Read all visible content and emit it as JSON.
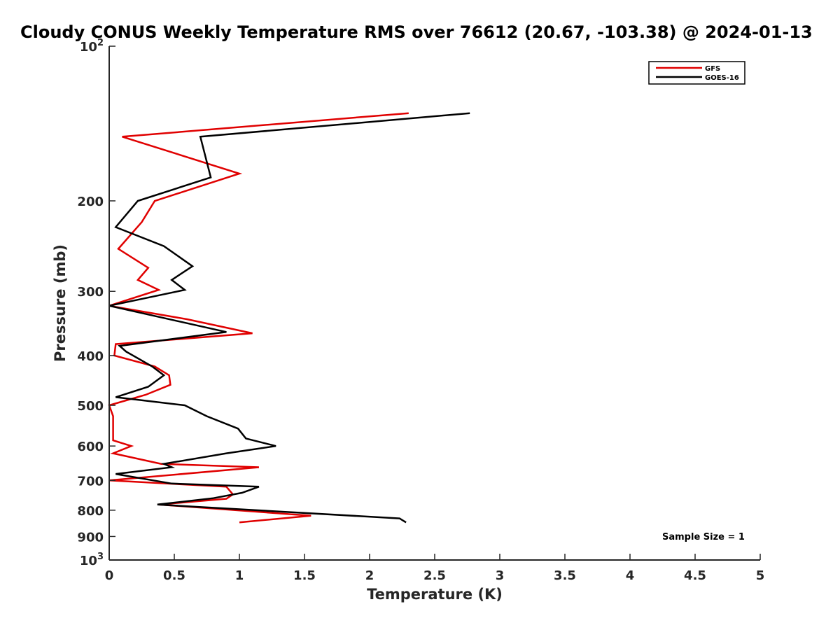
{
  "chart_data": {
    "type": "line",
    "title": "Cloudy CONUS Weekly Temperature RMS over 76612 (20.67, -103.38) @ 2024-01-13",
    "xlabel": "Temperature (K)",
    "ylabel": "Pressure (mb)",
    "xlim": [
      0,
      5
    ],
    "ylim": [
      100,
      1000
    ],
    "y_scale": "log",
    "y_reversed": true,
    "grid": false,
    "legend_position": "top-right",
    "x_ticks": [
      0,
      0.5,
      1,
      1.5,
      2,
      2.5,
      3,
      3.5,
      4,
      4.5,
      5
    ],
    "x_tick_labels": [
      "0",
      "0.5",
      "1",
      "1.5",
      "2",
      "2.5",
      "3",
      "3.5",
      "4",
      "4.5",
      "5"
    ],
    "y_ticks": [
      100,
      200,
      300,
      400,
      500,
      600,
      700,
      800,
      900,
      1000
    ],
    "y_tick_labels": [
      {
        "base": "10",
        "exp": "2"
      },
      {
        "base": "200",
        "exp": ""
      },
      {
        "base": "300",
        "exp": ""
      },
      {
        "base": "400",
        "exp": ""
      },
      {
        "base": "500",
        "exp": ""
      },
      {
        "base": "600",
        "exp": ""
      },
      {
        "base": "700",
        "exp": ""
      },
      {
        "base": "800",
        "exp": ""
      },
      {
        "base": "900",
        "exp": ""
      },
      {
        "base": "10",
        "exp": "3"
      }
    ],
    "series": [
      {
        "name": "GFS",
        "color": "#e00000",
        "points": [
          {
            "x": 2.3,
            "p": 135
          },
          {
            "x": 0.1,
            "p": 150
          },
          {
            "x": 1.0,
            "p": 177
          },
          {
            "x": 0.35,
            "p": 200
          },
          {
            "x": 0.25,
            "p": 220
          },
          {
            "x": 0.07,
            "p": 248
          },
          {
            "x": 0.3,
            "p": 270
          },
          {
            "x": 0.22,
            "p": 285
          },
          {
            "x": 0.38,
            "p": 298
          },
          {
            "x": 0.0,
            "p": 320
          },
          {
            "x": 0.6,
            "p": 340
          },
          {
            "x": 1.1,
            "p": 362
          },
          {
            "x": 0.05,
            "p": 380
          },
          {
            "x": 0.04,
            "p": 400
          },
          {
            "x": 0.35,
            "p": 420
          },
          {
            "x": 0.46,
            "p": 437
          },
          {
            "x": 0.47,
            "p": 456
          },
          {
            "x": 0.28,
            "p": 477
          },
          {
            "x": 0.0,
            "p": 500
          },
          {
            "x": 0.03,
            "p": 525
          },
          {
            "x": 0.03,
            "p": 555
          },
          {
            "x": 0.03,
            "p": 585
          },
          {
            "x": 0.17,
            "p": 600
          },
          {
            "x": 0.03,
            "p": 620
          },
          {
            "x": 0.4,
            "p": 650
          },
          {
            "x": 1.15,
            "p": 660
          },
          {
            "x": 0.0,
            "p": 700
          },
          {
            "x": 0.9,
            "p": 720
          },
          {
            "x": 0.95,
            "p": 745
          },
          {
            "x": 0.9,
            "p": 760
          },
          {
            "x": 0.38,
            "p": 780
          },
          {
            "x": 1.55,
            "p": 820
          },
          {
            "x": 1.0,
            "p": 845
          }
        ]
      },
      {
        "name": "GOES-16",
        "color": "#000000",
        "points": [
          {
            "x": 2.77,
            "p": 135
          },
          {
            "x": 0.7,
            "p": 150
          },
          {
            "x": 0.78,
            "p": 180
          },
          {
            "x": 0.22,
            "p": 200
          },
          {
            "x": 0.05,
            "p": 225
          },
          {
            "x": 0.42,
            "p": 245
          },
          {
            "x": 0.64,
            "p": 268
          },
          {
            "x": 0.48,
            "p": 285
          },
          {
            "x": 0.58,
            "p": 298
          },
          {
            "x": 0.0,
            "p": 320
          },
          {
            "x": 0.9,
            "p": 360
          },
          {
            "x": 0.08,
            "p": 383
          },
          {
            "x": 0.13,
            "p": 393
          },
          {
            "x": 0.33,
            "p": 420
          },
          {
            "x": 0.42,
            "p": 437
          },
          {
            "x": 0.3,
            "p": 460
          },
          {
            "x": 0.05,
            "p": 482
          },
          {
            "x": 0.58,
            "p": 500
          },
          {
            "x": 0.75,
            "p": 525
          },
          {
            "x": 0.99,
            "p": 555
          },
          {
            "x": 1.05,
            "p": 580
          },
          {
            "x": 1.28,
            "p": 600
          },
          {
            "x": 0.9,
            "p": 620
          },
          {
            "x": 0.42,
            "p": 650
          },
          {
            "x": 0.48,
            "p": 660
          },
          {
            "x": 0.05,
            "p": 680
          },
          {
            "x": 0.48,
            "p": 710
          },
          {
            "x": 1.15,
            "p": 720
          },
          {
            "x": 1.02,
            "p": 740
          },
          {
            "x": 0.8,
            "p": 758
          },
          {
            "x": 0.37,
            "p": 780
          },
          {
            "x": 2.23,
            "p": 830
          },
          {
            "x": 2.28,
            "p": 845
          }
        ]
      }
    ],
    "annotation": "Sample Size = 1"
  }
}
